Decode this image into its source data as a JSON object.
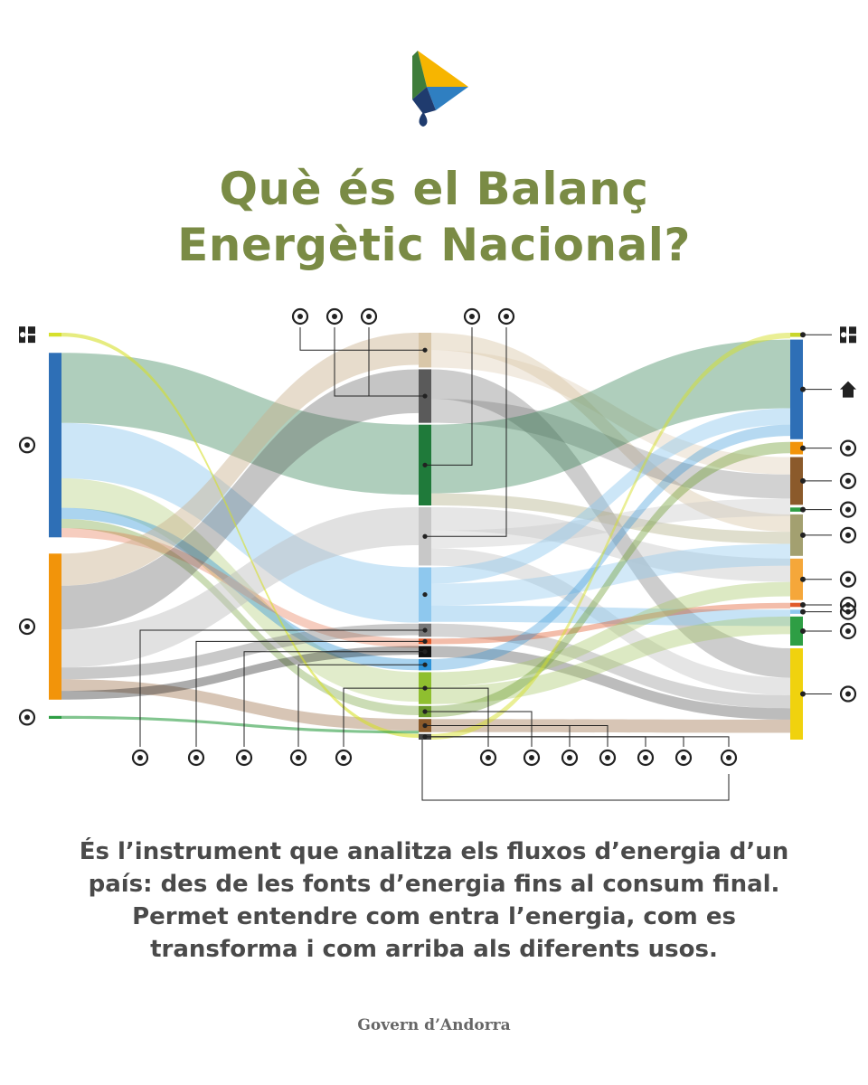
{
  "colors": {
    "title": "#7a8b45",
    "text": "#4a4a4a",
    "footer": "#666666",
    "logo_yellow": "#f7b500",
    "logo_blue": "#2f7fc1",
    "logo_green": "#3f7d3b",
    "logo_navy": "#1f3b6e",
    "connector": "#222222"
  },
  "title": {
    "line1": "Què és el Balanç",
    "line2": "Energètic Nacional?"
  },
  "description": {
    "line1": "És l’instrument que analitza els fluxos d’energia d’un",
    "line2": "país: des de les fonts d’energia fins al consum final.",
    "line3": "Permet entendre com entra l’energia, com es",
    "line4": "transforma i com arriba als diferents usos."
  },
  "footer": "Govern d’Andorra",
  "sankey": {
    "left_nodes": [
      {
        "id": "L1",
        "icon": "power-plant-icon",
        "color": "#d6e02c",
        "value": 4
      },
      {
        "id": "L2",
        "icon": "renewables-icon",
        "color": "#2e6fb6",
        "value": 192
      },
      {
        "id": "L3",
        "icon": "import-icon",
        "color": "#f2940a",
        "value": 152
      },
      {
        "id": "L4",
        "icon": "export-icon",
        "color": "#2e9e44",
        "value": 3
      }
    ],
    "middle_nodes": [
      {
        "id": "M1",
        "color": "#d9c7a9",
        "value": 37
      },
      {
        "id": "M2",
        "color": "#5a5a5a",
        "value": 57
      },
      {
        "id": "M3",
        "color": "#1f7a3a",
        "value": 86
      },
      {
        "id": "M4",
        "color": "#c8c8c8",
        "value": 62
      },
      {
        "id": "M5",
        "color": "#8ec8ee",
        "value": 58
      },
      {
        "id": "M6",
        "color": "#777777",
        "value": 14
      },
      {
        "id": "M7",
        "color": "#e05a2b",
        "value": 6
      },
      {
        "id": "M8",
        "color": "#111111",
        "value": 12
      },
      {
        "id": "M9",
        "color": "#2e93d8",
        "value": 12
      },
      {
        "id": "M10",
        "color": "#8fbf2f",
        "value": 34
      },
      {
        "id": "M11",
        "color": "#6b9a2c",
        "value": 12
      },
      {
        "id": "M12",
        "color": "#8b5a2b",
        "value": 14
      },
      {
        "id": "M13",
        "color": "#444444",
        "value": 6
      }
    ],
    "right_nodes": [
      {
        "id": "R1",
        "icon": "power-plant-icon",
        "color": "#c8d62c",
        "value": 4
      },
      {
        "id": "R2",
        "icon": "household-icon",
        "color": "#2e6fb6",
        "value": 96
      },
      {
        "id": "R3",
        "icon": "statue-icon",
        "color": "#f2940a",
        "value": 12
      },
      {
        "id": "R4",
        "icon": "industry-icon",
        "color": "#8b5a2b",
        "value": 46
      },
      {
        "id": "R5",
        "icon": "tractor-icon",
        "color": "#2e9e44",
        "value": 4
      },
      {
        "id": "R6",
        "icon": "power-station-icon",
        "color": "#a3a070",
        "value": 40
      },
      {
        "id": "R7",
        "icon": "shop-icon",
        "color": "#f5a73a",
        "value": 40
      },
      {
        "id": "R8",
        "icon": "factory-icon",
        "color": "#e05a2b",
        "value": 4
      },
      {
        "id": "R9",
        "icon": "losses-icon",
        "color": "#8ec8ee",
        "value": 4
      },
      {
        "id": "R10",
        "icon": "export-icon",
        "color": "#2e9e44",
        "value": 28
      },
      {
        "id": "R11",
        "icon": "bus-icon",
        "color": "#f0d20e",
        "value": 88
      }
    ],
    "top_icons": [
      "gas-bottle-icon",
      "gas-pipe-icon",
      "flame-cylinder-icon",
      "wood-icon",
      "fuel-pump-icon"
    ],
    "bottom_icons": [
      "electricity-icon",
      "jerrycan-icon",
      "biomass-plant-icon",
      "oil-barrel-icon",
      "waste-icon",
      "thermal-plant-icon",
      "grass-icon",
      "coal-icon",
      "heat-pump-icon",
      "car-icon",
      "sun-icon",
      "electric-charger-icon"
    ]
  }
}
